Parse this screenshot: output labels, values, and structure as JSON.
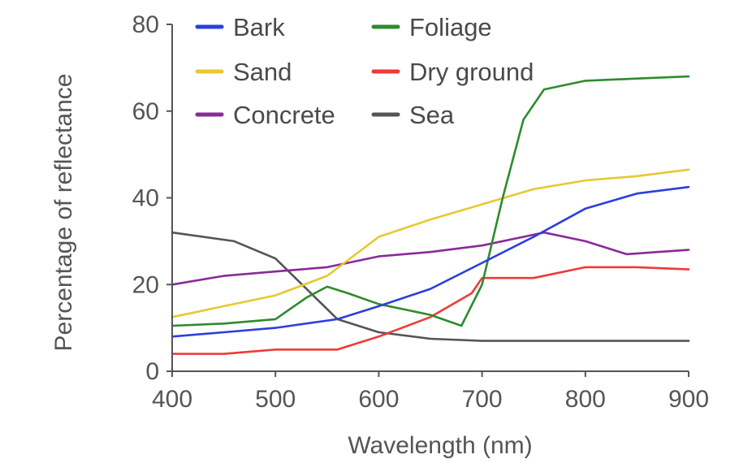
{
  "chart_data": {
    "type": "line",
    "title": "",
    "xlabel": "Wavelength (nm)",
    "ylabel": "Percentage of reflectance",
    "xlim": [
      400,
      900
    ],
    "ylim": [
      0,
      80
    ],
    "xticks": [
      "400",
      "500",
      "600",
      "700",
      "800",
      "900"
    ],
    "yticks": [
      "0",
      "20",
      "40",
      "60",
      "80"
    ],
    "grid": false,
    "legend_position": "top",
    "series": [
      {
        "name": "Bark",
        "color": "#2a3fe0",
        "points": [
          [
            400,
            8
          ],
          [
            450,
            9
          ],
          [
            500,
            10
          ],
          [
            560,
            12
          ],
          [
            600,
            15
          ],
          [
            650,
            19
          ],
          [
            700,
            25
          ],
          [
            750,
            31
          ],
          [
            800,
            37.5
          ],
          [
            850,
            41
          ],
          [
            900,
            42.5
          ]
        ]
      },
      {
        "name": "Foliage",
        "color": "#2e8b2e",
        "points": [
          [
            400,
            10.5
          ],
          [
            450,
            11
          ],
          [
            500,
            12
          ],
          [
            530,
            17
          ],
          [
            550,
            19.5
          ],
          [
            570,
            18
          ],
          [
            600,
            15.5
          ],
          [
            650,
            13
          ],
          [
            680,
            10.5
          ],
          [
            700,
            20
          ],
          [
            720,
            40
          ],
          [
            740,
            58
          ],
          [
            760,
            65
          ],
          [
            800,
            67
          ],
          [
            850,
            67.5
          ],
          [
            900,
            68
          ]
        ]
      },
      {
        "name": "Sand",
        "color": "#e8c832",
        "points": [
          [
            400,
            12.5
          ],
          [
            450,
            15
          ],
          [
            500,
            17.5
          ],
          [
            550,
            22
          ],
          [
            600,
            31
          ],
          [
            650,
            35
          ],
          [
            700,
            38.5
          ],
          [
            750,
            42
          ],
          [
            800,
            44
          ],
          [
            850,
            45
          ],
          [
            900,
            46.5
          ]
        ]
      },
      {
        "name": "Dry ground",
        "color": "#f03a3a",
        "points": [
          [
            400,
            4
          ],
          [
            450,
            4
          ],
          [
            500,
            5
          ],
          [
            560,
            5
          ],
          [
            600,
            8
          ],
          [
            650,
            12.5
          ],
          [
            690,
            18
          ],
          [
            700,
            21.5
          ],
          [
            750,
            21.5
          ],
          [
            800,
            24
          ],
          [
            850,
            24
          ],
          [
            900,
            23.5
          ]
        ]
      },
      {
        "name": "Concrete",
        "color": "#8a2a98",
        "points": [
          [
            400,
            20
          ],
          [
            450,
            22
          ],
          [
            500,
            23
          ],
          [
            550,
            24
          ],
          [
            600,
            26.5
          ],
          [
            650,
            27.5
          ],
          [
            700,
            29
          ],
          [
            750,
            31.5
          ],
          [
            760,
            32
          ],
          [
            800,
            30
          ],
          [
            840,
            27
          ],
          [
            870,
            27.5
          ],
          [
            900,
            28
          ]
        ]
      },
      {
        "name": "Sea",
        "color": "#555555",
        "points": [
          [
            400,
            32
          ],
          [
            460,
            30
          ],
          [
            500,
            26
          ],
          [
            530,
            19
          ],
          [
            560,
            12
          ],
          [
            600,
            9
          ],
          [
            650,
            7.5
          ],
          [
            700,
            7
          ],
          [
            750,
            7
          ],
          [
            800,
            7
          ],
          [
            850,
            7
          ],
          [
            900,
            7
          ]
        ]
      }
    ]
  }
}
